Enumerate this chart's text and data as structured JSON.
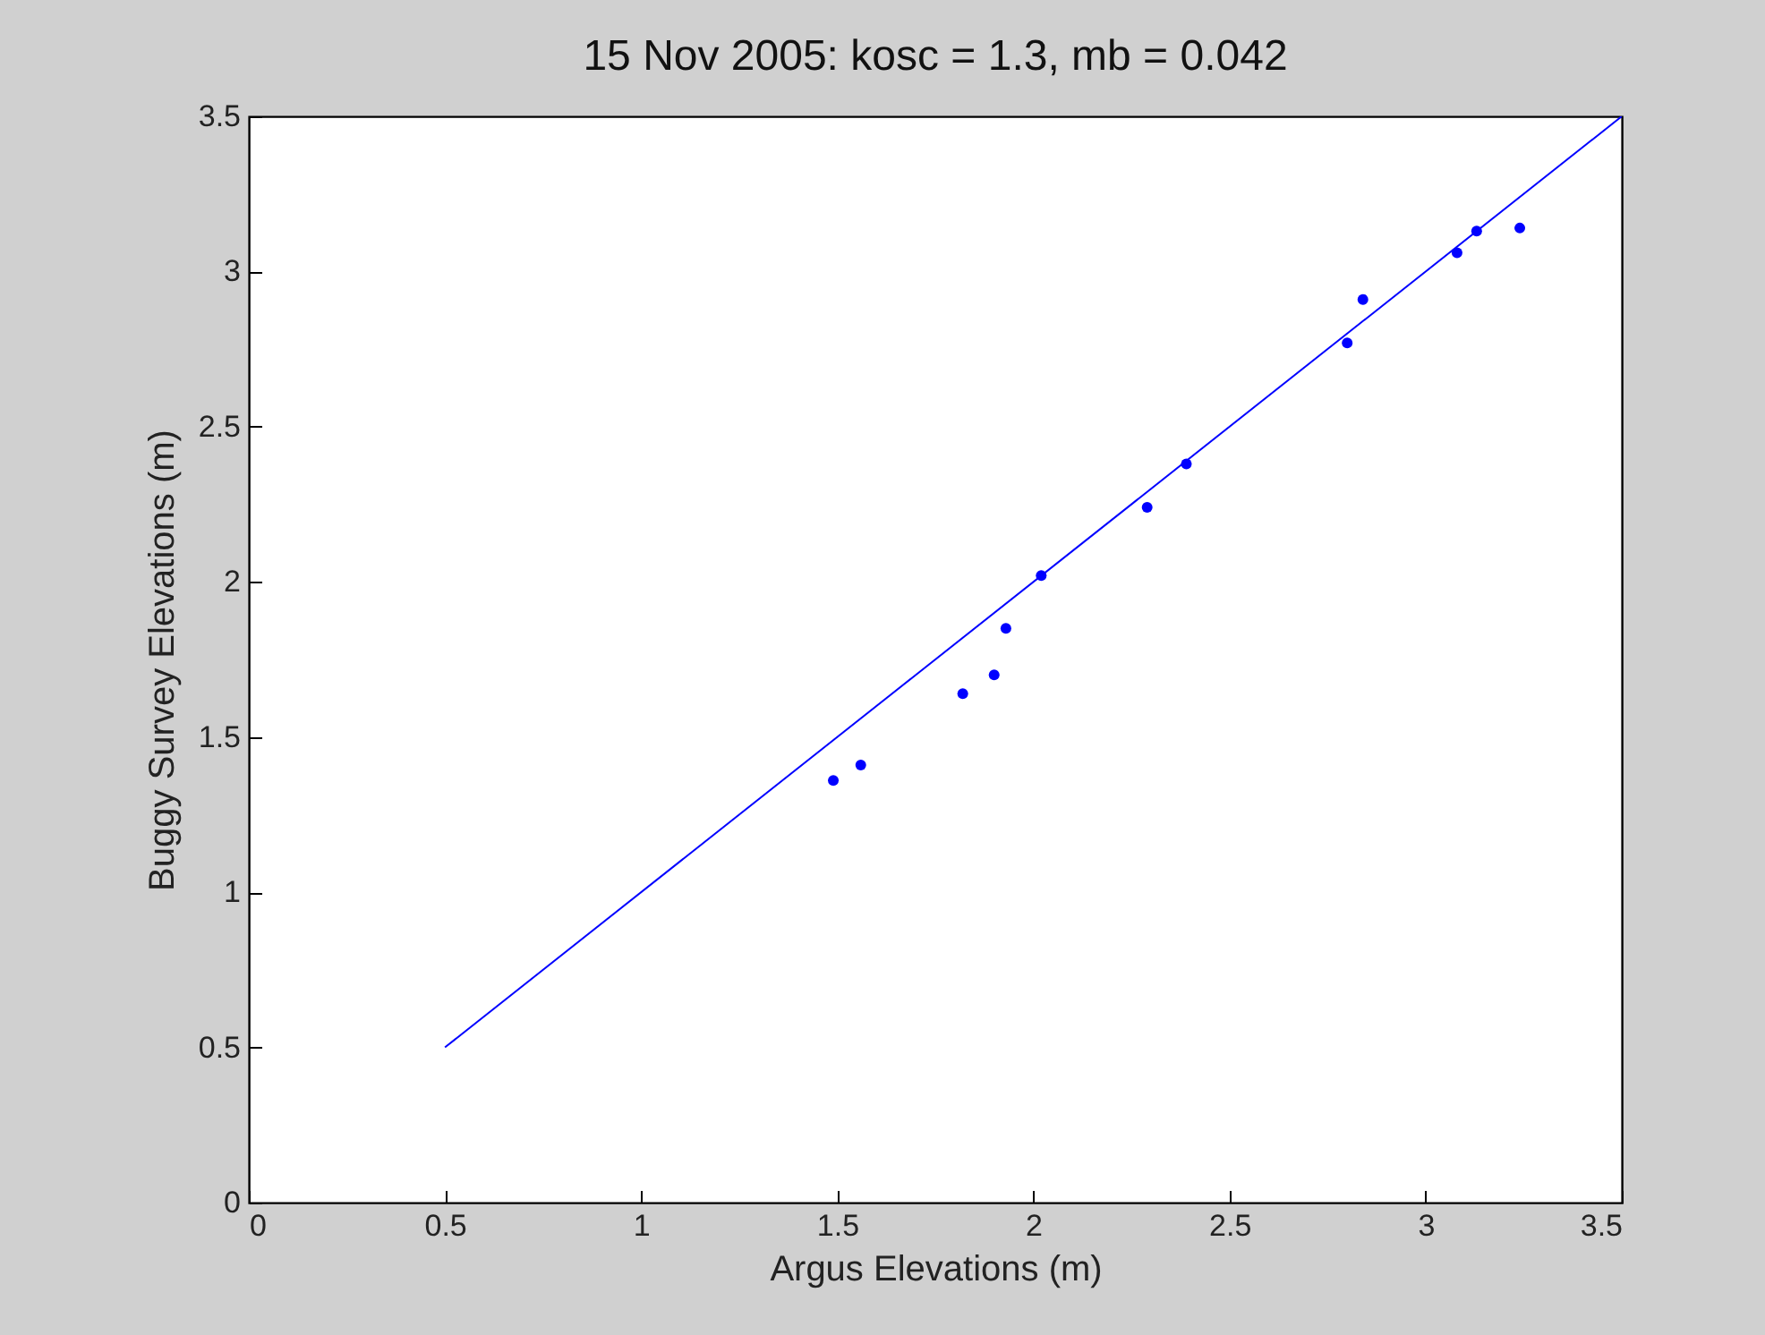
{
  "chart_data": {
    "type": "scatter",
    "title": "15 Nov 2005: kosc = 1.3, mb = 0.042",
    "xlabel": "Argus  Elevations (m)",
    "ylabel": "Buggy Survey Elevations (m)",
    "xlim": [
      0,
      3.5
    ],
    "xticks": [
      0,
      0.5,
      1,
      1.5,
      2,
      2.5,
      3,
      3.5
    ],
    "ylim": [
      0,
      3.5
    ],
    "yticks": [
      0,
      0.5,
      1,
      1.5,
      2,
      2.5,
      3,
      3.5
    ],
    "grid": false,
    "series": [
      {
        "color": "#0000ff",
        "marker": "circle",
        "x": [
          1.49,
          1.56,
          1.82,
          1.9,
          1.93,
          2.02,
          2.29,
          2.39,
          2.8,
          2.84,
          3.08,
          3.13,
          3.24
        ],
        "values": [
          1.36,
          1.41,
          1.64,
          1.7,
          1.85,
          2.02,
          2.24,
          2.38,
          2.77,
          2.91,
          3.06,
          3.13,
          3.14
        ]
      },
      {
        "type": "line",
        "color": "#0000ff",
        "x": [
          0.5,
          3.5
        ],
        "values": [
          0.5,
          3.5
        ]
      }
    ]
  }
}
